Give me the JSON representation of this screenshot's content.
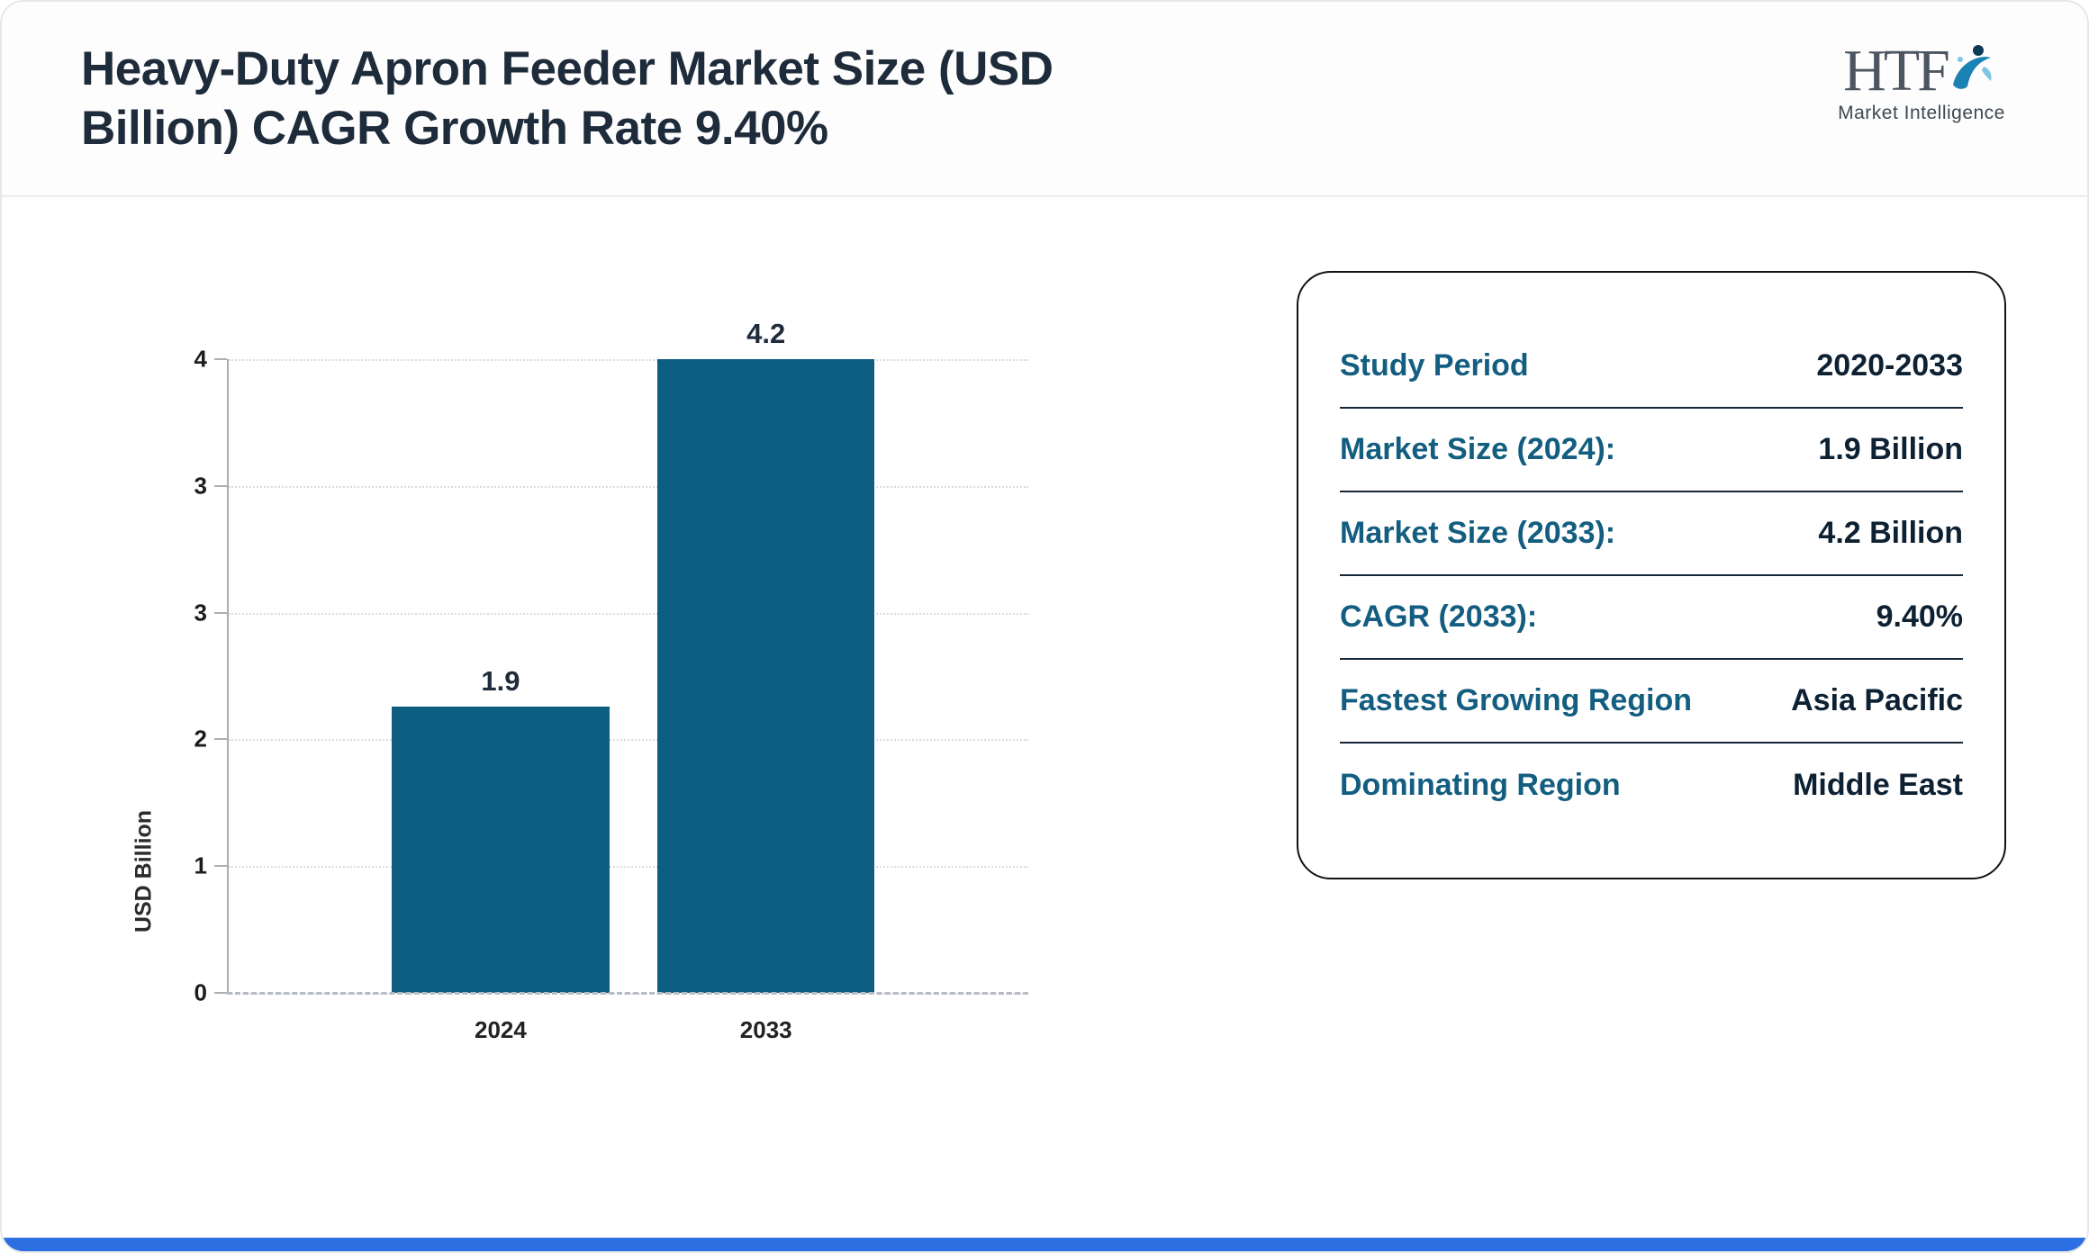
{
  "header": {
    "title_lines": [
      "Heavy-Duty Apron Feeder Market Size (USD",
      "Billion) CAGR Growth Rate 9.40%"
    ],
    "logo": {
      "text": "HTF",
      "subtext": "Market Intelligence"
    }
  },
  "chart_data": {
    "type": "bar",
    "title": "Heavy-Duty Apron Feeder Market Size (USD Billion) CAGR Growth Rate 9.40%",
    "categories": [
      "2024",
      "2033"
    ],
    "values": [
      1.9,
      4.2
    ],
    "bar_value_labels": [
      "1.9",
      "4.2"
    ],
    "xlabel": "",
    "ylabel": "USD Billion",
    "ylim": [
      0,
      4.2
    ],
    "y_tick_labels_top_to_bottom": [
      "4",
      "3",
      "3",
      "2",
      "1",
      "0"
    ],
    "grid": "horizontal dotted",
    "legend": "none",
    "bar_color": "#0d5e80"
  },
  "summary_card": {
    "rows": [
      {
        "label": "Study Period",
        "value": "2020-2033"
      },
      {
        "label": "Market Size (2024):",
        "value": "1.9 Billion"
      },
      {
        "label": "Market Size (2033):",
        "value": "4.2 Billion"
      },
      {
        "label": "CAGR (2033):",
        "value": "9.40%"
      },
      {
        "label": "Fastest Growing Region",
        "value": "Asia Pacific"
      },
      {
        "label": "Dominating Region",
        "value": "Middle East"
      }
    ],
    "label_color": "#135e80",
    "value_color": "#0d2133"
  },
  "footer": {
    "accent_color": "#2d6ee2"
  }
}
